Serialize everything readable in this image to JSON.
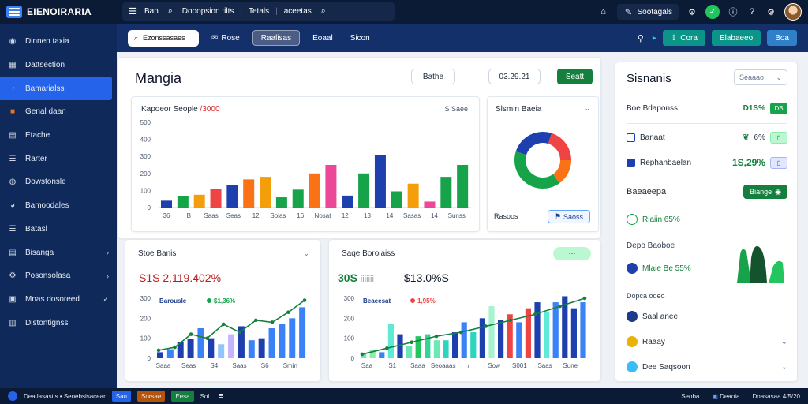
{
  "topbar": {
    "app_name": "EIENOIRARIA",
    "menu_label": "Ban",
    "search_tabs": [
      "Dooopsion tilts",
      "Tetals",
      "aceetas"
    ],
    "pill_label": "Sootagals"
  },
  "sidebar": {
    "items": [
      {
        "label": "Dinnen taxia",
        "icon": "circle-icon",
        "chevron": "",
        "active": false
      },
      {
        "label": "Dattsection",
        "icon": "grid-icon",
        "chevron": "",
        "active": false
      },
      {
        "label": "Bamarialss",
        "icon": "chat-icon",
        "chevron": "",
        "active": true
      },
      {
        "label": "Genal daan",
        "icon": "orange-square-icon",
        "chevron": "",
        "active": false
      },
      {
        "label": "Etache",
        "icon": "document-icon",
        "chevron": "",
        "active": false
      },
      {
        "label": "Rarter",
        "icon": "list-icon",
        "chevron": "",
        "active": false
      },
      {
        "label": "Dowstonsle",
        "icon": "globe-icon",
        "chevron": "",
        "active": false
      },
      {
        "label": "Bamoodales",
        "icon": "pie-icon",
        "chevron": "",
        "active": false
      },
      {
        "label": "Batasl",
        "icon": "list-icon",
        "chevron": "",
        "active": false
      },
      {
        "label": "Bisanga",
        "icon": "document-icon",
        "chevron": "›",
        "active": false
      },
      {
        "label": "Posonsolasa",
        "icon": "gear-icon",
        "chevron": "›",
        "active": false
      },
      {
        "label": "Mnas dosoreed",
        "icon": "image-icon",
        "chevron": "✓",
        "active": false
      },
      {
        "label": "Dlstontignss",
        "icon": "bars-icon",
        "chevron": "",
        "active": false
      }
    ]
  },
  "toolbar": {
    "search_placeholder": "Ezonssasaes",
    "item_1": "Rose",
    "item_2": "Raalisas",
    "item_3": "Eoaal",
    "item_4": "Sicon",
    "green_label": "Cora",
    "green2_label": "Elabaeeo",
    "blue_label": "Boa"
  },
  "main": {
    "title": "Mangia",
    "btn_1": "Bathe",
    "date": "03.29.21",
    "green_btn": "Seatt"
  },
  "bar_card": {
    "title": "Kapoeor Seople",
    "title_accent": "/3000",
    "right_label": "S Saee",
    "chart_data": {
      "type": "bar",
      "categories": [
        "36",
        "B",
        "Saas",
        "Seas",
        "12",
        "Solas",
        "16",
        "Nosat",
        "12",
        "13",
        "14",
        "Sasas",
        "14",
        "Sunss"
      ],
      "ylim": [
        0,
        500
      ],
      "yticks": [
        0,
        100,
        200,
        300,
        400,
        500
      ],
      "series": [
        {
          "values": [
            40,
            65,
            75,
            110,
            130,
            165,
            180,
            60,
            105,
            200,
            250,
            70,
            200,
            310
          ]
        },
        {
          "values": [
            0,
            0,
            0,
            0,
            0,
            0,
            0,
            170,
            0,
            0,
            0,
            190,
            0,
            0
          ]
        },
        {
          "values": [
            0,
            0,
            0,
            0,
            0,
            0,
            0,
            100,
            0,
            0,
            0,
            135,
            0,
            0
          ]
        }
      ],
      "bar_colors": [
        "#1e40af",
        "#16a34a",
        "#f59e0b",
        "#ef4444",
        "#1e40af",
        "#f97316",
        "#f59e0b",
        "#16a34a",
        "#16a34a",
        "#f97316",
        "#ec4899",
        "#1e40af",
        "#16a34a",
        "#1e40af",
        "#16a34a",
        "#f59e0b",
        "#ec4899",
        "#16a34a",
        "#16a34a"
      ]
    }
  },
  "donut_card": {
    "title": "Slsmin Baeia",
    "footer_left": "Rasoos",
    "footer_right": "Saoss",
    "chart_data": {
      "type": "pie",
      "values": [
        40,
        25,
        20,
        15
      ],
      "colors": [
        "#16a34a",
        "#1e40af",
        "#ef4444",
        "#f97316"
      ]
    }
  },
  "right_panel": {
    "title": "Sisnanis",
    "select": "Seaaao",
    "row1_label": "Boe Bdaponss",
    "row1_val": "D1S%",
    "row1_chip": "DB",
    "row2_label": "Banaat",
    "row2_val": "6%",
    "row3_label": "Rephanbaelan",
    "row3_val": "1S,29%",
    "section_label": "Baeaeepa",
    "section_btn": "Biange",
    "stat1": "Rlaiin 65%",
    "stat2_label": "Depo Baoboe",
    "stat3": "Mlaie Be 55%",
    "list_label": "Dopca odeo",
    "list": [
      {
        "label": "Saal anee",
        "color": "#1e3a8a"
      },
      {
        "label": "Raaay",
        "color": "#eab308"
      },
      {
        "label": "Dee Saqsoon",
        "color": "#38bdf8"
      }
    ]
  },
  "bottom_1": {
    "title": "Stoe Banis",
    "big_value": "S1S 2,119.402%",
    "legend_1": "Barousle",
    "legend_2": "$1,36%",
    "chart_data": {
      "type": "bar",
      "yticks": [
        0,
        100,
        200,
        300
      ],
      "categories": [
        "Saaa",
        "Seas",
        "S4",
        "Saas",
        "S6",
        "Smin"
      ],
      "bars": [
        30,
        45,
        80,
        95,
        150,
        100,
        70,
        120,
        160,
        90,
        100,
        150,
        170,
        200,
        255
      ],
      "bar_colors": [
        "#1e40af",
        "#3b82f6",
        "#1e40af",
        "#1e40af",
        "#3b82f6",
        "#1e40af",
        "#93c5fd",
        "#c4b5fd",
        "#1e40af",
        "#3b82f6",
        "#1e40af",
        "#3b82f6",
        "#3b82f6",
        "#3b82f6",
        "#3b82f6"
      ],
      "line": [
        40,
        55,
        120,
        100,
        170,
        130,
        190,
        180,
        230,
        290
      ]
    }
  },
  "bottom_2": {
    "title": "Saqe Boroiaiss",
    "big_value_1": "30S",
    "big_value_1_suffix": "iiiiiii",
    "big_value_2": "$13.0%S",
    "legend_1": "Beaeesat",
    "legend_2": "1,95%",
    "chart_data": {
      "type": "bar",
      "yticks": [
        0,
        100,
        200,
        300
      ],
      "categories": [
        "Saa",
        "S1",
        "Saaa",
        "Seoaaas",
        "/",
        "Sow",
        "S001",
        "Saas",
        "Sune"
      ],
      "bars": [
        25,
        40,
        30,
        170,
        120,
        60,
        110,
        120,
        90,
        90,
        130,
        180,
        130,
        200,
        260,
        190,
        220,
        180,
        250,
        280,
        230,
        280,
        310,
        250,
        280
      ],
      "bar_colors": [
        "#6ee7b7",
        "#86efac",
        "#3b82f6",
        "#5eead4",
        "#1e40af",
        "#6ee7b7",
        "#22c55e",
        "#34d399",
        "#6ee7b7",
        "#2dd4bf",
        "#1e40af",
        "#3b82f6",
        "#2dd4bf",
        "#1e40af",
        "#a7f3d0",
        "#1e40af",
        "#ef4444",
        "#3b82f6",
        "#ef4444",
        "#1e40af",
        "#5eead4",
        "#3b82f6",
        "#1e40af",
        "#1e40af",
        "#3b82f6"
      ],
      "line": [
        20,
        50,
        80,
        110,
        130,
        160,
        190,
        220,
        260,
        300
      ]
    }
  },
  "statusbar": {
    "text": "Deatlasastis • Seoebsisacear",
    "tag_1": "Sao",
    "tag_2": "Sorsae",
    "tag_3": "Eesa",
    "tag_4": "Sol",
    "right_1": "Seoba",
    "right_2": "Deaoia",
    "right_3": "Doasasaa 4/5/20"
  }
}
